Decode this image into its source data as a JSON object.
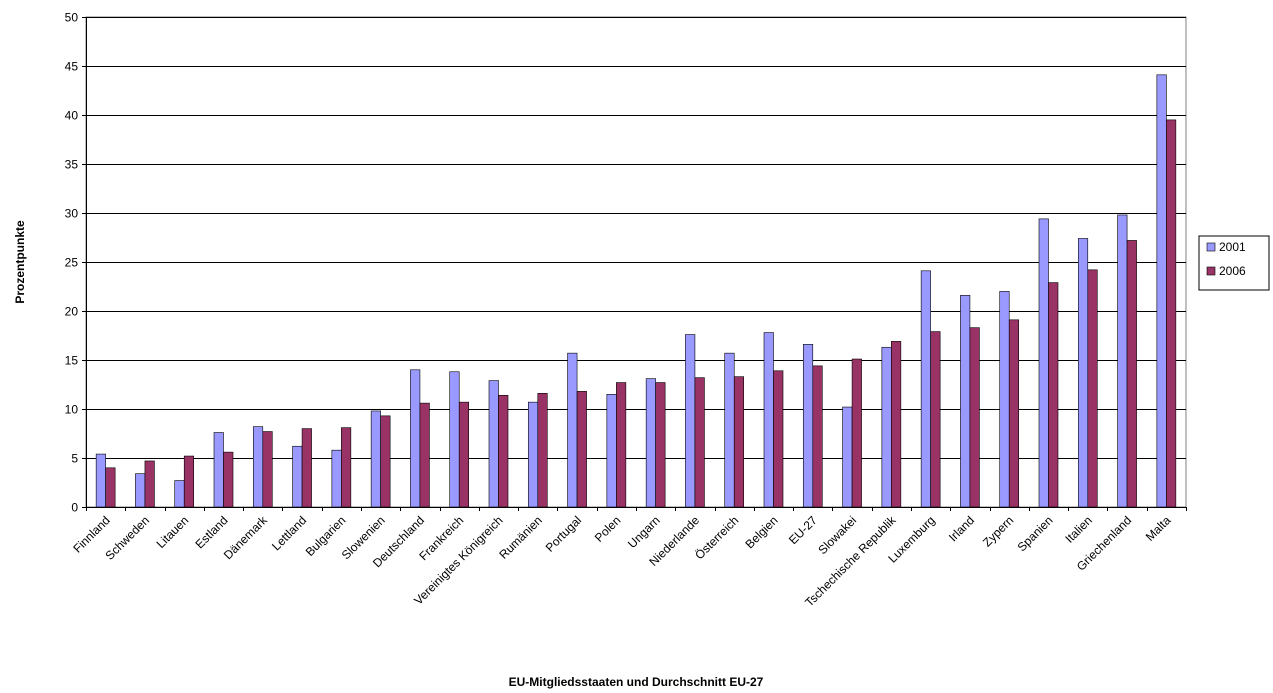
{
  "chart_data": {
    "type": "bar",
    "title": "",
    "xlabel": "EU-Mitgliedsstaaten und Durchschnitt EU-27",
    "ylabel": "Prozentpunkte",
    "ylim": [
      0,
      50
    ],
    "yticks": [
      0,
      5,
      10,
      15,
      20,
      25,
      30,
      35,
      40,
      45,
      50
    ],
    "grid": true,
    "legend_position": "right",
    "categories": [
      "Finnland",
      "Schweden",
      "Litauen",
      "Estland",
      "Dänemark",
      "Lettland",
      "Bulgarien",
      "Slowenien",
      "Deutschland",
      "Frankreich",
      "Vereinigtes Königreich",
      "Rumänien",
      "Portugal",
      "Polen",
      "Ungarn",
      "Niederlande",
      "Österreich",
      "Belgien",
      "EU-27",
      "Slowakei",
      "Tschechische Republik",
      "Luxemburg",
      "Irland",
      "Zypern",
      "Spanien",
      "Italien",
      "Griechenland",
      "Malta"
    ],
    "series": [
      {
        "name": "2001",
        "color": "#9999ff",
        "values": [
          5.4,
          3.4,
          2.7,
          7.6,
          8.2,
          6.2,
          5.8,
          9.8,
          14.0,
          13.8,
          12.9,
          10.7,
          15.7,
          11.5,
          13.1,
          17.6,
          15.7,
          17.8,
          16.6,
          10.2,
          16.3,
          24.1,
          21.6,
          22.0,
          29.4,
          27.4,
          29.8,
          44.1
        ]
      },
      {
        "name": "2006",
        "color": "#993366",
        "values": [
          4.0,
          4.7,
          5.2,
          5.6,
          7.7,
          8.0,
          8.1,
          9.3,
          10.6,
          10.7,
          11.4,
          11.6,
          11.8,
          12.7,
          12.7,
          13.2,
          13.3,
          13.9,
          14.4,
          15.1,
          16.9,
          17.9,
          18.3,
          19.1,
          22.9,
          24.2,
          27.2,
          39.5
        ]
      }
    ]
  }
}
